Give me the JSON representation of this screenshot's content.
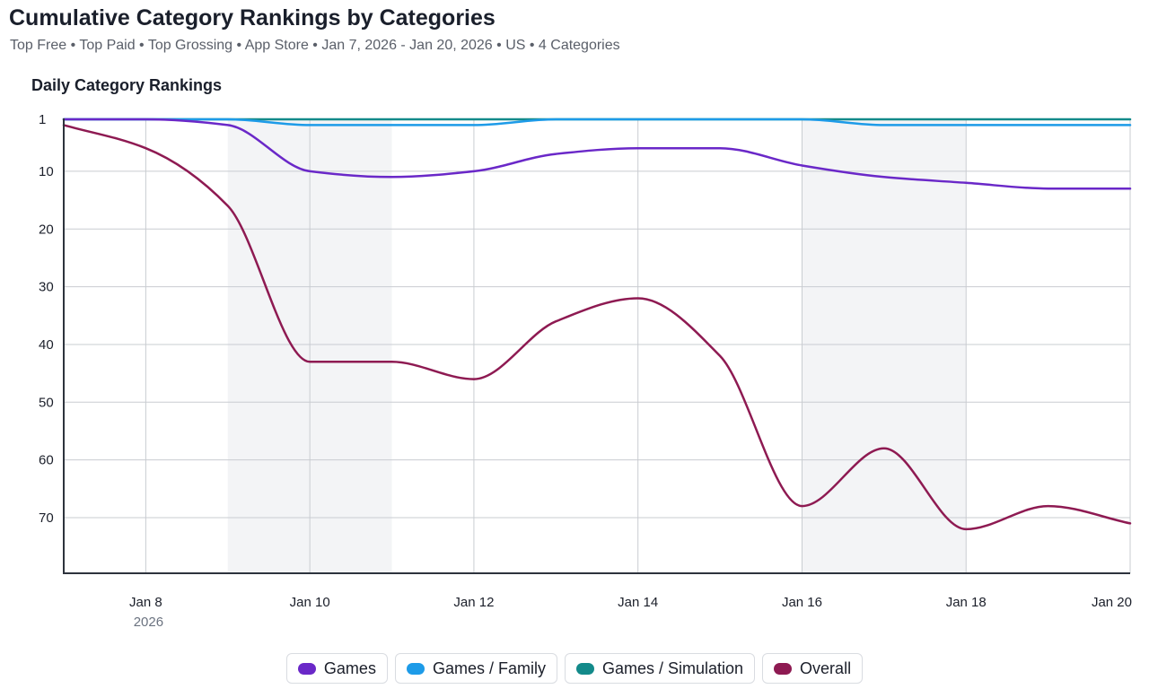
{
  "header": {
    "title": "Cumulative Category Rankings by Categories",
    "subtitle": "Top Free • Top Paid • Top Grossing • App Store • Jan 7, 2026 - Jan 20, 2026 • US • 4 Categories"
  },
  "chart_data": {
    "type": "line",
    "title": "Daily Category Rankings",
    "y_axis": {
      "reversed": true,
      "ylim": [
        1,
        79
      ],
      "ticks": [
        1,
        10,
        20,
        30,
        40,
        50,
        60,
        70
      ]
    },
    "x_axis": {
      "range": [
        "2026-01-07",
        "2026-01-20"
      ],
      "ticks": [
        {
          "date": "2026-01-08",
          "label": "Jan 8",
          "sublabel": "2026"
        },
        {
          "date": "2026-01-10",
          "label": "Jan 10"
        },
        {
          "date": "2026-01-12",
          "label": "Jan 12"
        },
        {
          "date": "2026-01-14",
          "label": "Jan 14"
        },
        {
          "date": "2026-01-16",
          "label": "Jan 16"
        },
        {
          "date": "2026-01-18",
          "label": "Jan 18"
        },
        {
          "date": "2026-01-20",
          "label": "Jan 20"
        }
      ]
    },
    "grid": true,
    "weekend_shading": [
      [
        "2026-01-09",
        "2026-01-11"
      ],
      [
        "2026-01-16",
        "2026-01-18"
      ]
    ],
    "x": [
      "2026-01-07",
      "2026-01-08",
      "2026-01-09",
      "2026-01-10",
      "2026-01-11",
      "2026-01-12",
      "2026-01-13",
      "2026-01-14",
      "2026-01-15",
      "2026-01-16",
      "2026-01-17",
      "2026-01-18",
      "2026-01-19",
      "2026-01-20"
    ],
    "series": [
      {
        "name": "Games",
        "color": "#6a28c8",
        "values": [
          1,
          1,
          2,
          10,
          11,
          10,
          7,
          6,
          6,
          9,
          11,
          12,
          13,
          13
        ]
      },
      {
        "name": "Games / Family",
        "color": "#1d9be8",
        "values": [
          1,
          1,
          1,
          2,
          2,
          2,
          1,
          1,
          1,
          1,
          2,
          2,
          2,
          2
        ]
      },
      {
        "name": "Games / Simulation",
        "color": "#138a8a",
        "values": [
          1,
          1,
          1,
          1,
          1,
          1,
          1,
          1,
          1,
          1,
          1,
          1,
          1,
          1
        ]
      },
      {
        "name": "Overall",
        "color": "#8e1a52",
        "values": [
          2,
          6,
          16,
          43,
          43,
          46,
          36,
          32,
          42,
          68,
          58,
          72,
          68,
          71
        ]
      }
    ],
    "legend_position": "bottom-center"
  }
}
